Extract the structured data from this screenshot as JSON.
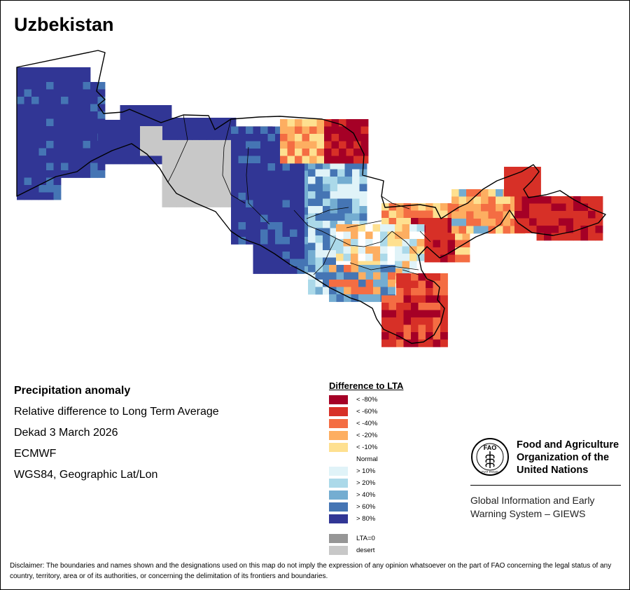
{
  "title": "Uzbekistan",
  "info": {
    "line1": "Precipitation anomaly",
    "line2": "Relative difference to Long Term Average",
    "line3": "Dekad 3 March 2026",
    "line4": "ECMWF",
    "line5": "WGS84, Geographic Lat/Lon"
  },
  "legend": {
    "title": "Difference to LTA",
    "items": [
      {
        "label": "< -80%",
        "color": "#a50026"
      },
      {
        "label": "< -60%",
        "color": "#d73027"
      },
      {
        "label": "< -40%",
        "color": "#f46d43"
      },
      {
        "label": "< -20%",
        "color": "#fdae61"
      },
      {
        "label": "< -10%",
        "color": "#fee090"
      },
      {
        "label": "Normal",
        "color": "#ffffff"
      },
      {
        "label": "> 10%",
        "color": "#e0f3f8"
      },
      {
        "label": "> 20%",
        "color": "#abd9e9"
      },
      {
        "label": "> 40%",
        "color": "#74add1"
      },
      {
        "label": "> 60%",
        "color": "#4575b4"
      },
      {
        "label": "> 80%",
        "color": "#313695"
      }
    ],
    "extra": [
      {
        "label": "LTA=0",
        "color": "#969696"
      },
      {
        "label": "desert",
        "color": "#c8c8c8"
      }
    ]
  },
  "fao": {
    "name": "Food and Agriculture Organization of the United Nations",
    "logo_text": "FAO",
    "motto": "FIAT PANIS",
    "system": "Global Information and Early Warning System – GIEWS"
  },
  "disclaimer": "Disclaimer: The boundaries and names shown and the designations used on this map do not imply the expression of any opinion whatsoever on the part of FAO concerning the legal status of any country, territory, area or of its authorities, or concerning the delimitation of its frontiers and boundaries."
}
